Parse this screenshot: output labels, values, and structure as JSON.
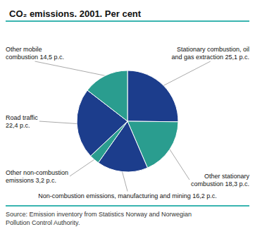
{
  "chart_data": {
    "type": "pie",
    "title": "CO₂ emissions. 2001. Per cent",
    "categories": [
      "Stationary combustion, oil\nand gas extraction 25,1 p.c.",
      "Other stationary\ncombustion 18,3 p.c.",
      "Non-combustion emissions, manufacturing and mining 16,2 p.c.",
      "Other non-combustion\nemissions 3,2 p.c.",
      "Road traffic\n22,4 p.c.",
      "Other mobile\ncombustion 14,5 p.c."
    ],
    "values": [
      25.1,
      18.3,
      16.2,
      3.2,
      22.4,
      14.5
    ],
    "colors": [
      "#1c3d8c",
      "#2a9d8f",
      "#1c3d8c",
      "#2a9d8f",
      "#1c3d8c",
      "#2a9d8f"
    ],
    "annotations": [
      "Source: Emission inventory from Statistics Norway and Norwegian\nPollution Control Authority."
    ]
  }
}
